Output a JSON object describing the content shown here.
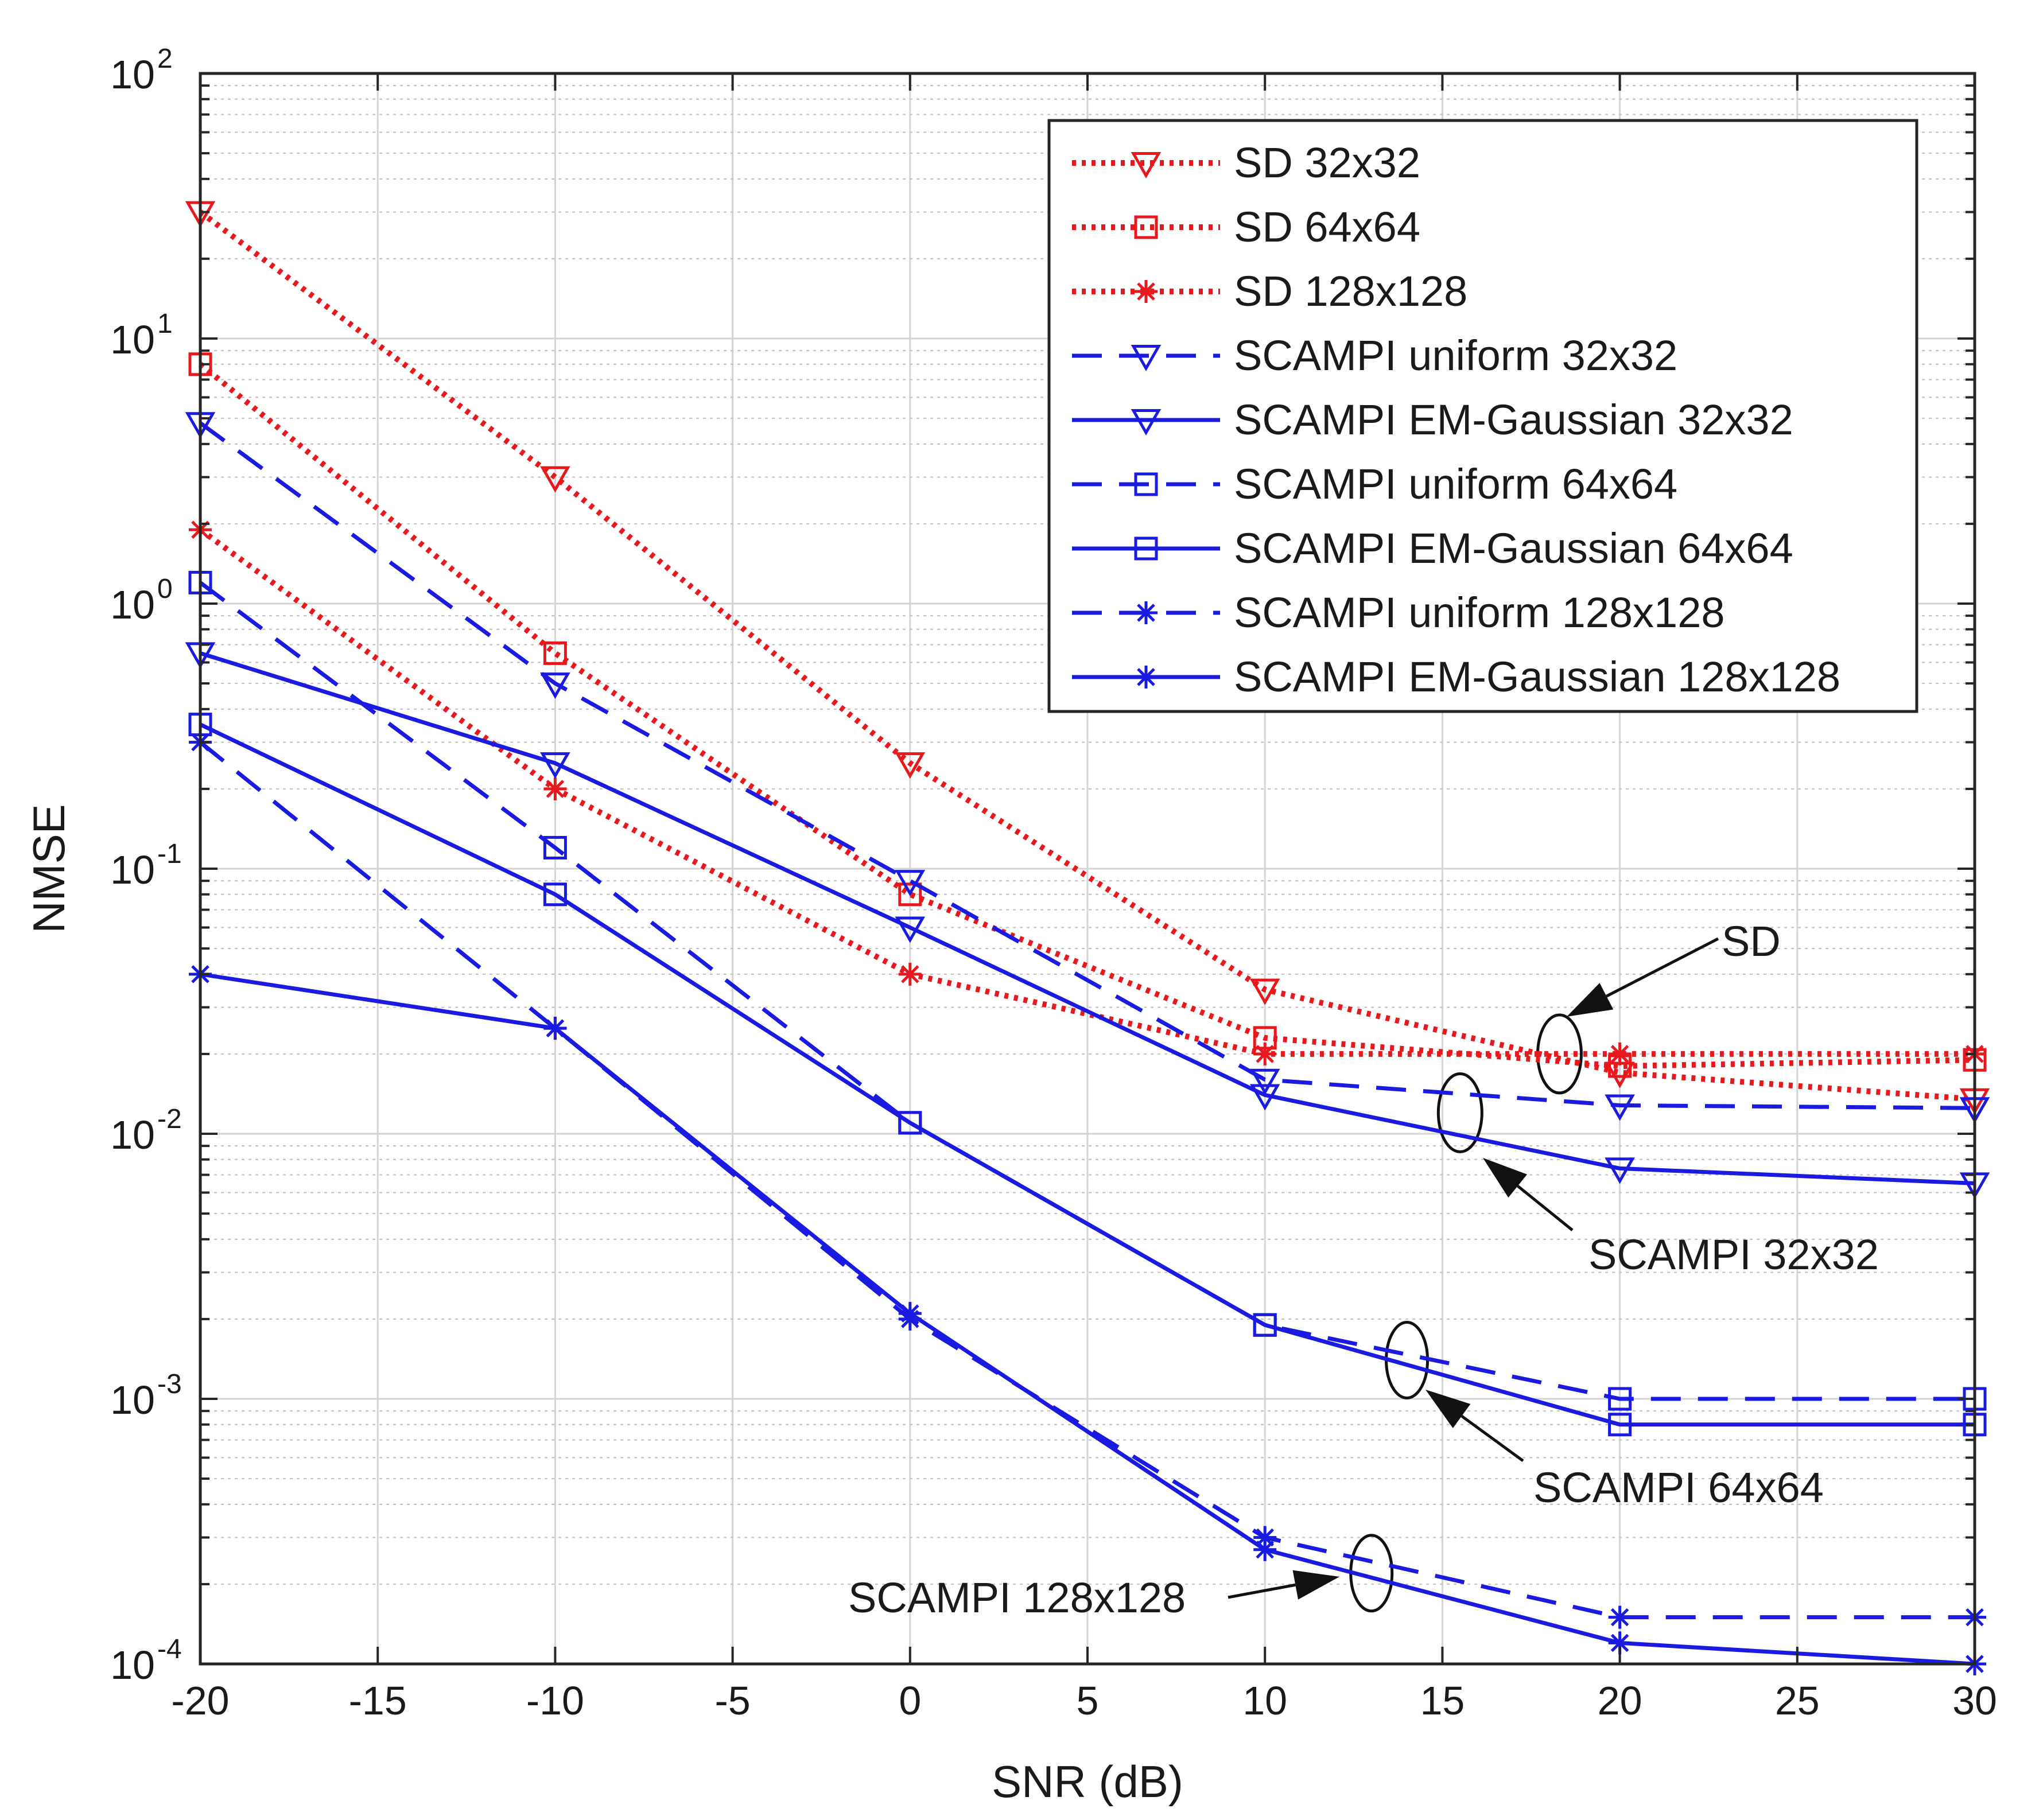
{
  "chart_data": {
    "type": "line",
    "title": "",
    "xlabel": "SNR (dB)",
    "ylabel": "NMSE",
    "xlim": [
      -20,
      30
    ],
    "ylim": [
      0.0001,
      100
    ],
    "yscale": "log",
    "grid": true,
    "legend_position": "top-right",
    "x": [
      -20,
      -10,
      0,
      10,
      20,
      30
    ],
    "x_ticks": [
      -20,
      -15,
      -10,
      -5,
      0,
      5,
      10,
      15,
      20,
      25,
      30
    ],
    "x_tick_labels": [
      "-20",
      "-15",
      "-10",
      "-5",
      "0",
      "5",
      "10",
      "15",
      "20",
      "25",
      "30"
    ],
    "y_ticks": [
      {
        "value": 0.0001,
        "base": "10",
        "exp": "-4"
      },
      {
        "value": 0.001,
        "base": "10",
        "exp": "-3"
      },
      {
        "value": 0.01,
        "base": "10",
        "exp": "-2"
      },
      {
        "value": 0.1,
        "base": "10",
        "exp": "-1"
      },
      {
        "value": 1,
        "base": "10",
        "exp": "0"
      },
      {
        "value": 10,
        "base": "10",
        "exp": "1"
      },
      {
        "value": 100,
        "base": "10",
        "exp": "2"
      }
    ],
    "series": [
      {
        "name": "SD 32x32",
        "color": "#e8191c",
        "dash": "dotted",
        "marker": "triangle-down",
        "values": [
          30,
          3.0,
          0.25,
          0.035,
          0.017,
          0.0135
        ]
      },
      {
        "name": "SD 64x64",
        "color": "#e8191c",
        "dash": "dotted",
        "marker": "square",
        "values": [
          8,
          0.65,
          0.08,
          0.023,
          0.018,
          0.019
        ]
      },
      {
        "name": "SD 128x128",
        "color": "#e8191c",
        "dash": "dotted",
        "marker": "asterisk",
        "values": [
          1.9,
          0.2,
          0.04,
          0.02,
          0.02,
          0.02
        ]
      },
      {
        "name": "SCAMPI uniform 32x32",
        "color": "#1a1ae0",
        "dash": "dashed",
        "marker": "triangle-down",
        "values": [
          4.8,
          0.5,
          0.09,
          0.016,
          0.0128,
          0.0125
        ]
      },
      {
        "name": "SCAMPI EM-Gaussian 32x32",
        "color": "#1a1ae0",
        "dash": "solid",
        "marker": "triangle-down",
        "values": [
          0.65,
          0.25,
          0.06,
          0.014,
          0.0074,
          0.0065
        ]
      },
      {
        "name": "SCAMPI uniform 64x64",
        "color": "#1a1ae0",
        "dash": "dashed",
        "marker": "square",
        "values": [
          1.2,
          0.12,
          0.011,
          0.0019,
          0.001,
          0.001
        ]
      },
      {
        "name": "SCAMPI EM-Gaussian 64x64",
        "color": "#1a1ae0",
        "dash": "solid",
        "marker": "square",
        "values": [
          0.35,
          0.08,
          0.011,
          0.0019,
          0.0008,
          0.0008
        ]
      },
      {
        "name": "SCAMPI uniform 128x128",
        "color": "#1a1ae0",
        "dash": "dashed",
        "marker": "asterisk",
        "values": [
          0.3,
          0.025,
          0.002,
          0.0003,
          0.00015,
          0.00015
        ]
      },
      {
        "name": "SCAMPI EM-Gaussian 128x128",
        "color": "#1a1ae0",
        "dash": "solid",
        "marker": "asterisk",
        "values": [
          0.04,
          0.025,
          0.0021,
          0.00027,
          0.00012,
          0.0001
        ]
      }
    ],
    "annotations": [
      {
        "text": "SD",
        "ellipse_at": {
          "x": 18.3,
          "y": 0.02
        }
      },
      {
        "text": "SCAMPI 32x32",
        "ellipse_at": {
          "x": 15.5,
          "y": 0.012
        }
      },
      {
        "text": "SCAMPI 64x64",
        "ellipse_at": {
          "x": 14,
          "y": 0.0014
        }
      },
      {
        "text": "SCAMPI 128x128",
        "ellipse_at": {
          "x": 13,
          "y": 0.00022
        }
      }
    ]
  }
}
